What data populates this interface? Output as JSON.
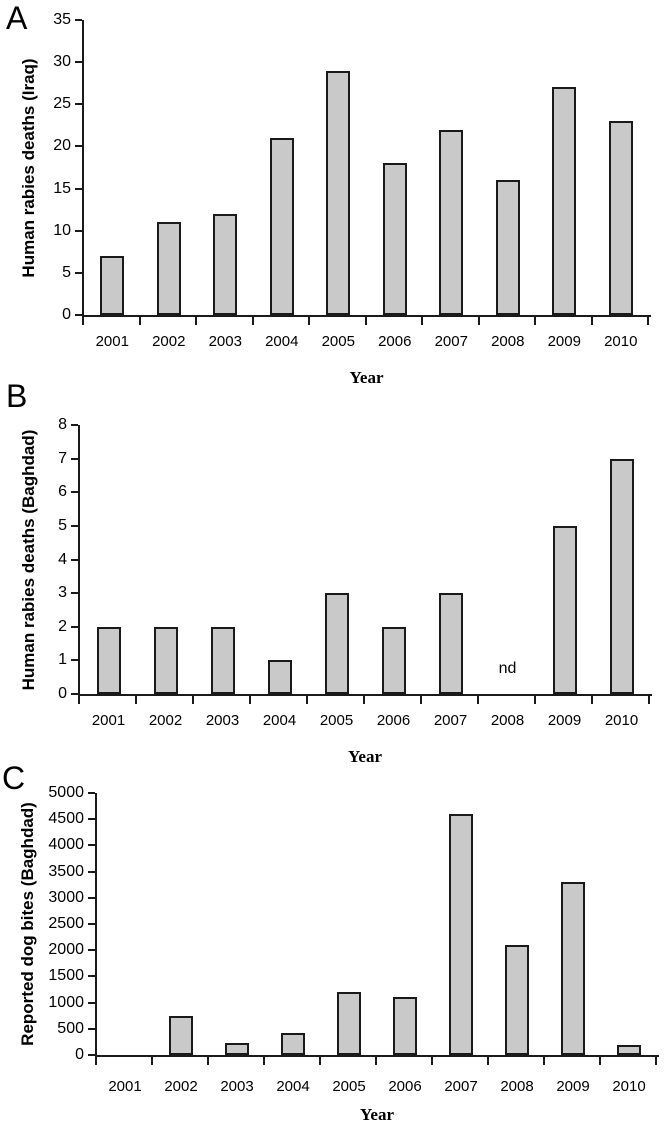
{
  "style": {
    "bar_fill": "#c9c9c9",
    "bar_border": "#1a1a1a",
    "axis_color": "#1a1a1a",
    "text_color": "#000000",
    "background": "#ffffff"
  },
  "chart_data": [
    {
      "type": "bar",
      "panel": "A",
      "title": "",
      "ylabel": "Human rabies deaths (Iraq)",
      "xlabel": "Year",
      "categories": [
        "2001",
        "2002",
        "2003",
        "2004",
        "2005",
        "2006",
        "2007",
        "2008",
        "2009",
        "2010"
      ],
      "values": [
        7,
        11,
        12,
        21,
        29,
        18,
        22,
        16,
        27,
        23
      ],
      "ylim": [
        0,
        35
      ],
      "ytick_step": 5,
      "grid": false,
      "legend": null
    },
    {
      "type": "bar",
      "panel": "B",
      "title": "",
      "ylabel": "Human rabies deaths (Baghdad)",
      "xlabel": "Year",
      "categories": [
        "2001",
        "2002",
        "2003",
        "2004",
        "2005",
        "2006",
        "2007",
        "2008",
        "2009",
        "2010"
      ],
      "values": [
        2,
        2,
        2,
        1,
        3,
        2,
        3,
        null,
        5,
        7
      ],
      "no_data_label": "nd",
      "no_data_category": "2008",
      "ylim": [
        0,
        8
      ],
      "ytick_step": 1,
      "grid": false,
      "legend": null
    },
    {
      "type": "bar",
      "panel": "C",
      "title": "",
      "ylabel": "Reported dog bites (Baghdad)",
      "xlabel": "Year",
      "categories": [
        "2001",
        "2002",
        "2003",
        "2004",
        "2005",
        "2006",
        "2007",
        "2008",
        "2009",
        "2010"
      ],
      "values": [
        0,
        750,
        230,
        420,
        1200,
        1100,
        4600,
        2100,
        3300,
        200
      ],
      "ylim": [
        0,
        5000
      ],
      "ytick_step": 500,
      "grid": false,
      "legend": null
    }
  ]
}
